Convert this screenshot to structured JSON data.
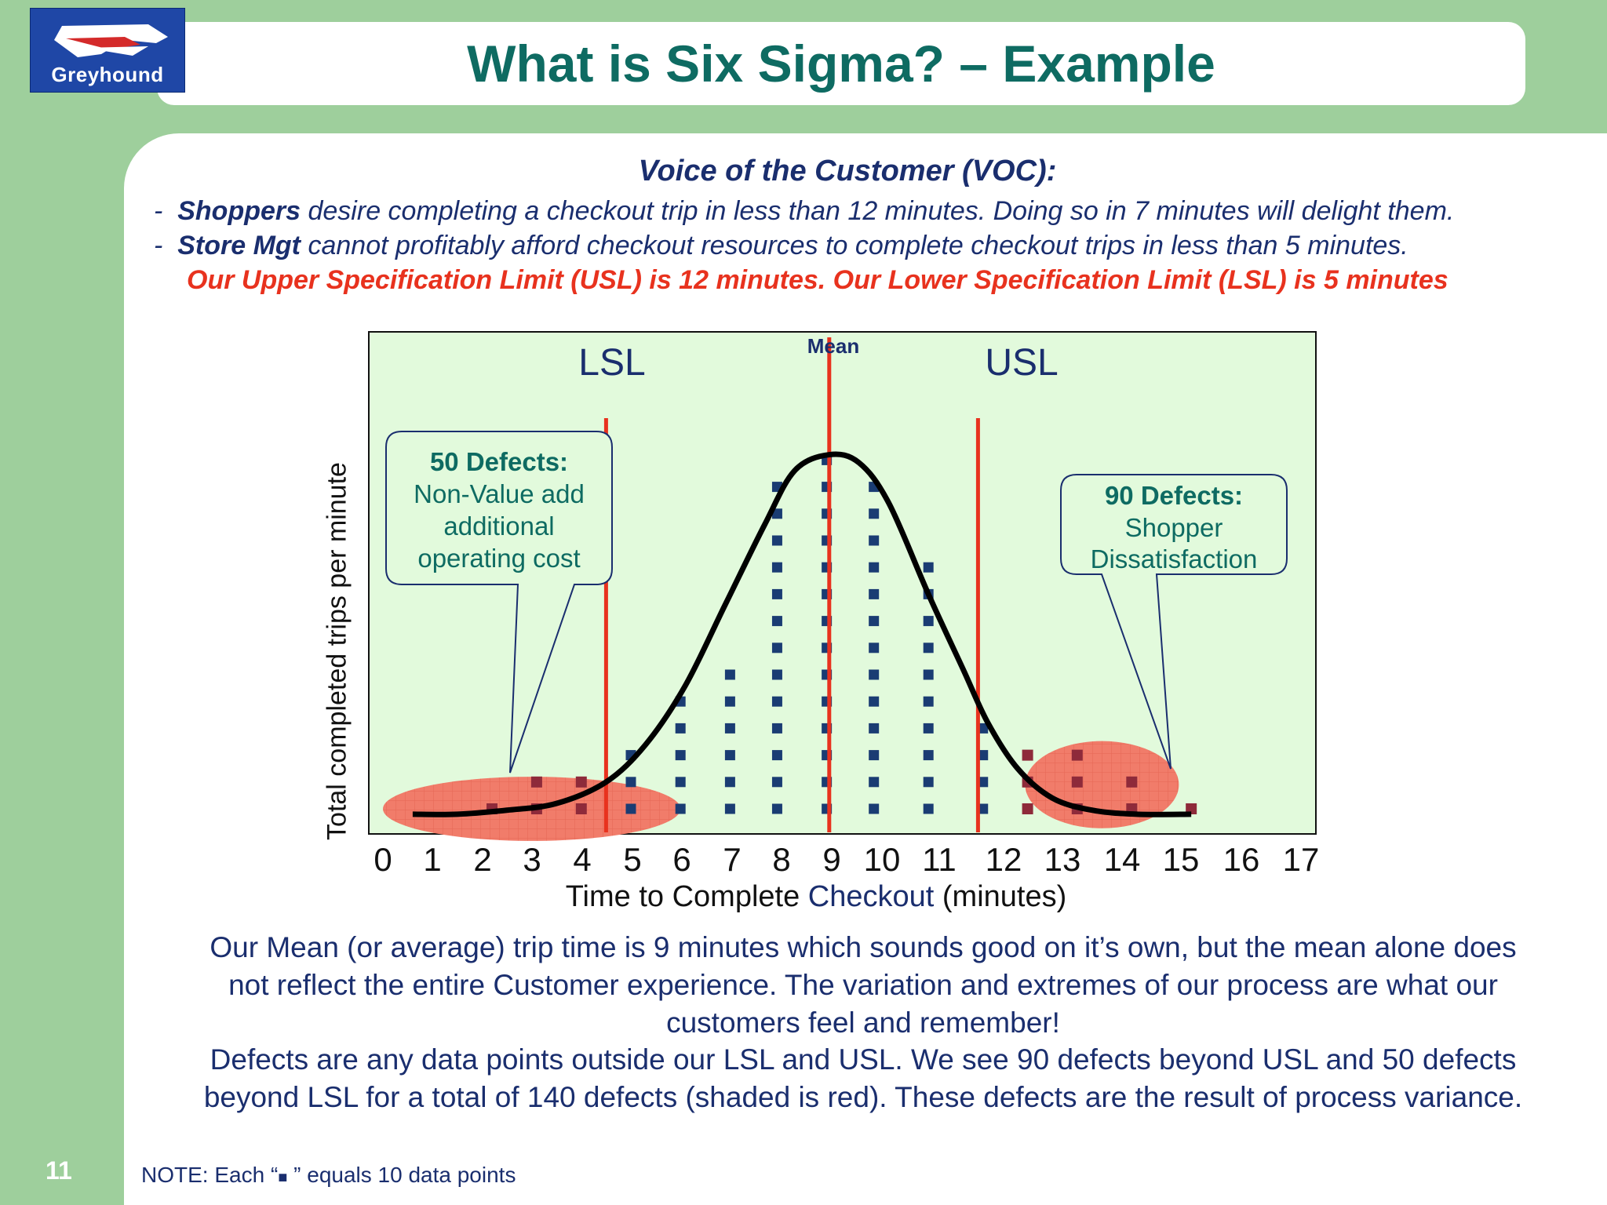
{
  "header": {
    "title": "What is Six Sigma? – Example",
    "logo_text": "Greyhound"
  },
  "voc": {
    "heading": "Voice of the Customer (VOC):",
    "bullets": [
      {
        "dash": "-",
        "lead": "Shoppers",
        "text": " desire completing a checkout trip in less than 12 minutes.  Doing so in 7 minutes will delight them."
      },
      {
        "dash": "-",
        "lead": "Store Mgt",
        "text": " cannot profitably afford checkout resources to complete checkout trips in less than 5 minutes."
      }
    ],
    "spec_line": "Our Upper Specification Limit (USL) is 12 minutes.  Our Lower Specification Limit (LSL) is 5 minutes"
  },
  "chart_data": {
    "type": "scatter",
    "xlabel": {
      "pre": "Time to Complete ",
      "highlight": "Checkout",
      "post": " (minutes)"
    },
    "ylabel": "Total completed trips per minute",
    "x_ticks": [
      "0",
      "1",
      "2",
      "3",
      "4",
      "5",
      "6",
      "7",
      "8",
      "9",
      "10",
      "11",
      "12",
      "13",
      "14",
      "15",
      "16",
      "17"
    ],
    "xlim": [
      0,
      17
    ],
    "grid": false,
    "lsl": {
      "label": "LSL",
      "x": 4.5,
      "color": "#e8321e"
    },
    "usl": {
      "label": "USL",
      "x": 12,
      "color": "#e8321e"
    },
    "mean": {
      "label": "Mean",
      "x": 9,
      "color": "#e8321e"
    },
    "marker_note": {
      "pre": "NOTE: Each “",
      "glyph": "■",
      "post": " ” equals 10 data points"
    },
    "columns": [
      {
        "x": 2.2,
        "count": 1,
        "defect": true
      },
      {
        "x": 3.1,
        "count": 2,
        "defect": true
      },
      {
        "x": 4.0,
        "count": 2,
        "defect": true
      },
      {
        "x": 5.0,
        "count": 3,
        "defect": false
      },
      {
        "x": 6.0,
        "count": 5,
        "defect": false
      },
      {
        "x": 7.0,
        "count": 6,
        "defect": false
      },
      {
        "x": 7.95,
        "count": 13,
        "defect": false
      },
      {
        "x": 8.95,
        "count": 14,
        "defect": false
      },
      {
        "x": 9.9,
        "count": 13,
        "defect": false
      },
      {
        "x": 11.0,
        "count": 10,
        "defect": false
      },
      {
        "x": 12.1,
        "count": 4,
        "defect": false
      },
      {
        "x": 13.0,
        "count": 3,
        "defect": true
      },
      {
        "x": 14.0,
        "count": 3,
        "defect": true
      },
      {
        "x": 15.1,
        "count": 2,
        "defect": true
      },
      {
        "x": 16.3,
        "count": 1,
        "defect": true
      }
    ],
    "curve": [
      [
        0.6,
        0.8
      ],
      [
        1.5,
        0.8
      ],
      [
        2.5,
        0.95
      ],
      [
        3.5,
        1.2
      ],
      [
        4.5,
        2
      ],
      [
        5.3,
        3.4
      ],
      [
        6.1,
        5.6
      ],
      [
        6.9,
        8.6
      ],
      [
        7.7,
        11.6
      ],
      [
        8.3,
        13.6
      ],
      [
        9.0,
        14.2
      ],
      [
        9.6,
        13.9
      ],
      [
        10.2,
        12.4
      ],
      [
        11.0,
        9.0
      ],
      [
        11.7,
        6.2
      ],
      [
        12.2,
        4.2
      ],
      [
        12.8,
        2.5
      ],
      [
        13.5,
        1.4
      ],
      [
        14.3,
        0.95
      ],
      [
        15.2,
        0.8
      ],
      [
        16.3,
        0.8
      ]
    ],
    "callouts": [
      {
        "title": "50 Defects:",
        "lines": [
          "Non-Value add",
          "additional",
          "operating cost"
        ]
      },
      {
        "title": "90 Defects:",
        "lines": [
          "Shopper",
          "Dissatisfaction"
        ]
      }
    ]
  },
  "summary": {
    "p1": [
      "Our Mean (or average) trip time is 9 minutes which sounds good on it’s own, but the mean alone does",
      "not reflect the entire Customer experience.  The variation and extremes of our process are what our",
      "customers feel and remember!"
    ],
    "p2": [
      "Defects are any data points outside our LSL and USL.  We see 90 defects beyond USL and 50 defects",
      "beyond LSL for a total of 140 defects (shaded is red).  These defects are the result of process variance."
    ]
  },
  "page_number": "11",
  "colors": {
    "title": "#0e6b62",
    "text_navy": "#1a2e6e",
    "accent_red": "#e8321e",
    "plot_bg": "#e2fadc",
    "marker": "#1a3c73",
    "defect_marker": "#8e2a3a",
    "ellipse": "#f17c6a"
  }
}
